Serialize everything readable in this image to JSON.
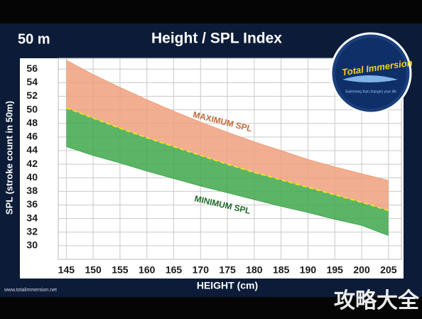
{
  "chart_data": {
    "type": "band",
    "corner_label": "50 m",
    "title": "Height / SPL Index",
    "x_label": "HEIGHT (cm)",
    "y_label": "SPL (stroke count in 50m)",
    "x": [
      145,
      150,
      155,
      160,
      165,
      170,
      175,
      180,
      185,
      190,
      195,
      200,
      205
    ],
    "series": [
      {
        "name": "MAXIMUM SPL",
        "color": "#f0a07c",
        "values": [
          57.3,
          55.2,
          53.3,
          51.5,
          49.8,
          48.2,
          46.7,
          45.3,
          44.0,
          42.7,
          41.6,
          40.6,
          39.6
        ]
      },
      {
        "color": "#f2e21c",
        "values": [
          50.3,
          48.8,
          47.3,
          45.9,
          44.6,
          43.3,
          42.0,
          40.8,
          39.7,
          38.6,
          37.5,
          36.4,
          35.2
        ]
      },
      {
        "name": "MINIMUM SPL",
        "color": "#3fa84c",
        "values": [
          44.6,
          43.3,
          42.2,
          41.0,
          39.9,
          38.8,
          37.8,
          36.8,
          35.8,
          34.9,
          33.9,
          33.0,
          31.5
        ]
      }
    ],
    "xlim": [
      143.5,
      207.4
    ],
    "ylim": [
      28,
      57.6
    ],
    "xticks": [
      145,
      150,
      155,
      160,
      165,
      170,
      175,
      180,
      185,
      190,
      195,
      200,
      205
    ],
    "yticks": [
      30,
      32,
      34,
      36,
      38,
      40,
      42,
      44,
      46,
      48,
      50,
      52,
      54,
      56
    ],
    "grid": true,
    "logo_name": "Total Immersion",
    "logo_tagline": "Swimming that changes your life",
    "source": "www.totalimmersion.net",
    "watermark": "攻略大全"
  }
}
